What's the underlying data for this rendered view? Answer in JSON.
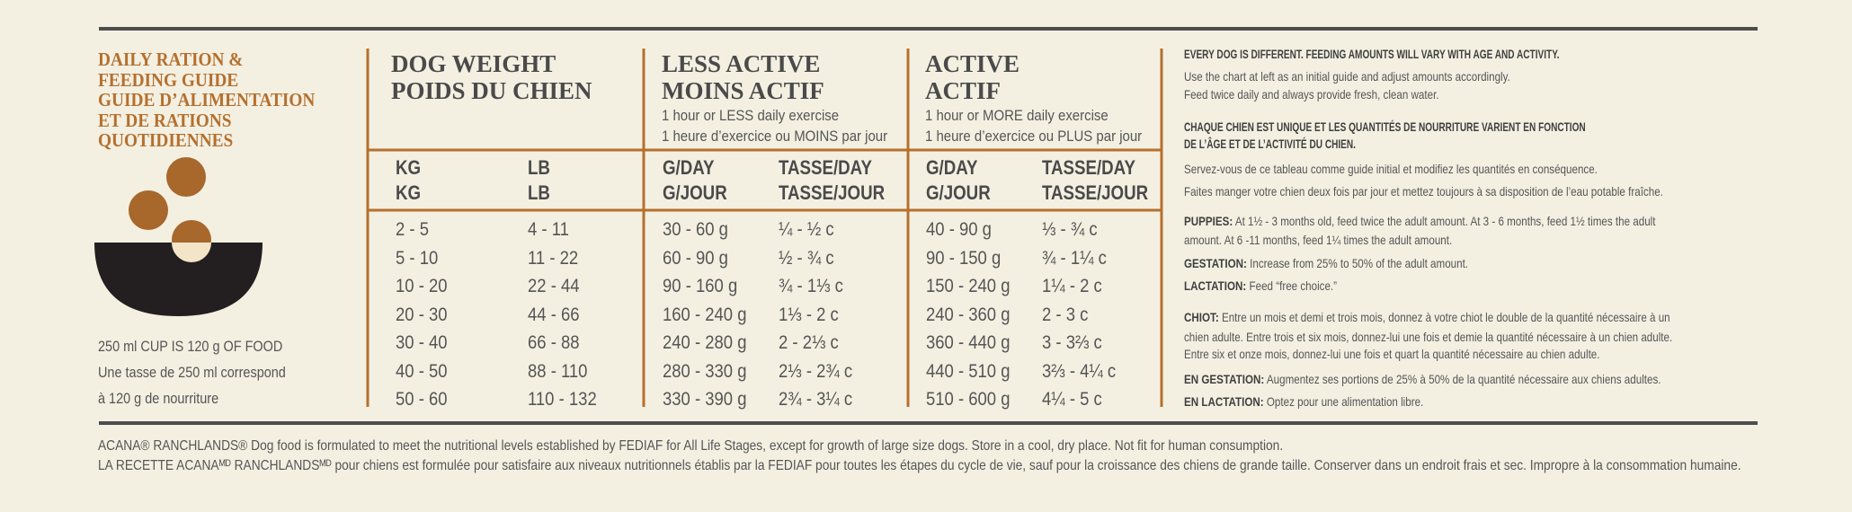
{
  "header": {
    "title_lines": [
      "DAILY RATION &",
      "FEEDING GUIDE",
      "GUIDE D’ALIMENTATION",
      "ET DE RATIONS",
      "QUOTIDIENNES"
    ],
    "cup_note_lines": [
      "250 ml CUP IS 120 g OF FOOD",
      "Une tasse de 250 ml correspond",
      "à 120 g de nourriture"
    ]
  },
  "table": {
    "groups": [
      {
        "title_lines": [
          "DOG WEIGHT",
          "POIDS DU CHIEN"
        ]
      },
      {
        "title_lines": [
          "LESS ACTIVE",
          "MOINS ACTIF"
        ],
        "subtitle_lines": [
          "1 hour or LESS daily exercise",
          "1 heure d’exercice ou MOINS par jour"
        ]
      },
      {
        "title_lines": [
          "ACTIVE",
          "ACTIF"
        ],
        "subtitle_lines": [
          "1 hour or MORE daily exercise",
          "1 heure d’exercice ou PLUS par jour"
        ]
      }
    ],
    "columns": [
      [
        "KG",
        "KG"
      ],
      [
        "LB",
        "LB"
      ],
      [
        "G/DAY",
        "G/JOUR"
      ],
      [
        "TASSE/DAY",
        "TASSE/JOUR"
      ],
      [
        "G/DAY",
        "G/JOUR"
      ],
      [
        "TASSE/DAY",
        "TASSE/JOUR"
      ]
    ],
    "rows": [
      [
        "2 - 5",
        "4 - 11",
        "30 - 60 g",
        "¼ - ½ c",
        "40 - 90 g",
        "⅓ - ¾ c"
      ],
      [
        "5 - 10",
        "11 - 22",
        "60 - 90 g",
        "½ - ¾ c",
        "90 - 150 g",
        "¾ - 1¼ c"
      ],
      [
        "10 - 20",
        "22 - 44",
        "90 - 160 g",
        "¾ - 1⅓ c",
        "150 - 240 g",
        "1¼ - 2 c"
      ],
      [
        "20 - 30",
        "44 - 66",
        "160 - 240 g",
        "1⅓ - 2 c",
        "240 - 360 g",
        "2 - 3 c"
      ],
      [
        "30 - 40",
        "66 - 88",
        "240 - 280 g",
        "2 - 2⅓ c",
        "360 - 440 g",
        "3 - 3⅔ c"
      ],
      [
        "40 - 50",
        "88 - 110",
        "280 - 330 g",
        "2⅓ - 2¾ c",
        "440 - 510 g",
        "3⅔ - 4¼ c"
      ],
      [
        "50 - 60",
        "110 - 132",
        "330 - 390 g",
        "2¾ - 3¼ c",
        "510 - 600 g",
        "4¼ - 5 c"
      ]
    ]
  },
  "notes": [
    {
      "lead": "EVERY DOG IS DIFFERENT. FEEDING AMOUNTS WILL VARY WITH AGE AND ACTIVITY."
    },
    {
      "text": "Use the chart at left as an initial guide and adjust amounts accordingly."
    },
    {
      "text": "Feed twice daily and always provide fresh, clean water."
    },
    {
      "lead": "CHAQUE CHIEN EST UNIQUE ET LES QUANTITÉS DE NOURRITURE VARIENT EN FONCTION"
    },
    {
      "lead": "DE L’ÂGE ET DE L’ACTIVITÉ DU CHIEN."
    },
    {
      "text": "Servez-vous de ce tableau comme guide initial et modifiez les quantités en conséquence."
    },
    {
      "text": "Faites manger votre chien deux fois par jour et mettez toujours à sa disposition de l’eau potable fraîche."
    },
    {
      "lead": "PUPPIES:",
      "text": "At 1½ - 3 months old, feed twice the adult amount. At 3 - 6 months, feed 1½ times the adult"
    },
    {
      "text": "amount. At 6 -11 months, feed 1¼ times the adult amount."
    },
    {
      "lead": "GESTATION:",
      "text": "Increase from 25% to 50% of the adult amount."
    },
    {
      "lead": "LACTATION:",
      "text": "Feed “free choice.”"
    },
    {
      "lead": "CHIOT:",
      "text": "Entre un mois et demi et trois mois, donnez à votre chiot le double de la quantité nécessaire à un"
    },
    {
      "text": "chien adulte. Entre trois et six mois, donnez-lui une fois et demie la quantité nécessaire à un chien adulte."
    },
    {
      "text": "Entre six et onze mois, donnez-lui une fois et quart la quantité nécessaire au chien adulte."
    },
    {
      "lead": "EN GESTATION:",
      "text": "Augmentez ses portions de 25% à 50% de la quantité nécessaire aux chiens adultes."
    },
    {
      "lead": "EN LACTATION:",
      "text": "Optez pour une alimentation libre."
    }
  ],
  "footer": {
    "lines": [
      "ACANA® RANCHLANDS® Dog food is formulated to meet the nutritional levels established by FEDIAF for All Life Stages, except for growth of large size dogs. Store in a cool, dry place. Not fit for human consumption.",
      "LA RECETTE ACANAᴹᴰ RANCHLANDSᴹᴰ pour chiens est formulée pour satisfaire aux niveaux nutritionnels établis par la FEDIAF pour toutes les étapes du cycle de vie, sauf pour la croissance des chiens de grande taille. Conserver dans un endroit frais et sec. Impropre à la consommation humaine."
    ]
  }
}
